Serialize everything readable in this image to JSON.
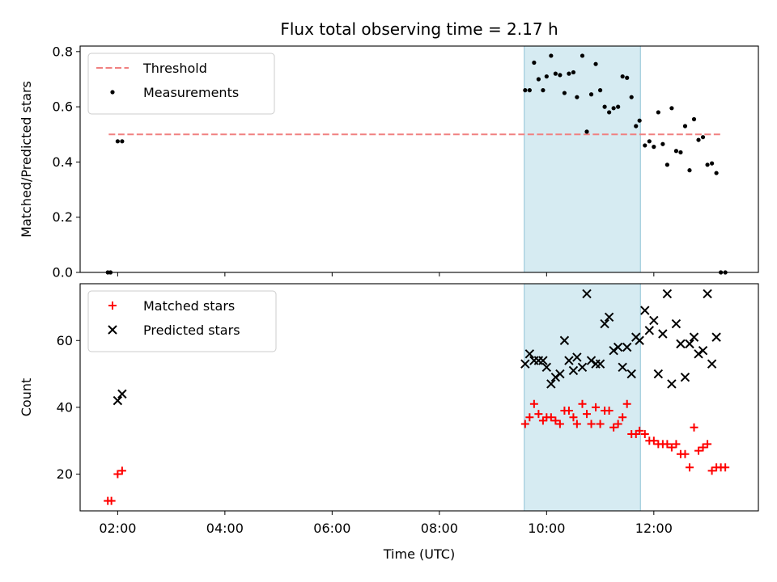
{
  "chart_data": {
    "type": "scatter",
    "title": "Flux total observing time = 2.17 h",
    "xlabel": "Time (UTC)",
    "x_ticks": [
      "02:00",
      "04:00",
      "06:00",
      "08:00",
      "10:00",
      "12:00"
    ],
    "shaded_interval": [
      "09:35",
      "11:45"
    ],
    "shade_color": "#add8e6",
    "panels": [
      {
        "ylabel": "Matched/Predicted stars",
        "ylim": [
          0,
          0.82
        ],
        "yticks": [
          0.0,
          0.2,
          0.4,
          0.6,
          0.8
        ],
        "threshold": {
          "name": "Threshold",
          "value": 0.5,
          "x_range": [
            "01:50",
            "13:15"
          ],
          "color": "#f08080"
        },
        "series": [
          {
            "name": "Measurements",
            "color": "#000000",
            "marker": "dot",
            "points": [
              [
                "01:49",
                0.0
              ],
              [
                "01:52",
                0.0
              ],
              [
                "02:00",
                0.475
              ],
              [
                "02:05",
                0.475
              ],
              [
                "09:36",
                0.66
              ],
              [
                "09:41",
                0.66
              ],
              [
                "09:46",
                0.76
              ],
              [
                "09:51",
                0.7
              ],
              [
                "09:56",
                0.66
              ],
              [
                "10:00",
                0.71
              ],
              [
                "10:05",
                0.785
              ],
              [
                "10:10",
                0.72
              ],
              [
                "10:15",
                0.715
              ],
              [
                "10:20",
                0.65
              ],
              [
                "10:25",
                0.72
              ],
              [
                "10:30",
                0.725
              ],
              [
                "10:34",
                0.635
              ],
              [
                "10:40",
                0.785
              ],
              [
                "10:45",
                0.51
              ],
              [
                "10:50",
                0.645
              ],
              [
                "10:55",
                0.755
              ],
              [
                "11:00",
                0.66
              ],
              [
                "11:05",
                0.6
              ],
              [
                "11:10",
                0.58
              ],
              [
                "11:15",
                0.595
              ],
              [
                "11:20",
                0.6
              ],
              [
                "11:25",
                0.71
              ],
              [
                "11:30",
                0.705
              ],
              [
                "11:35",
                0.635
              ],
              [
                "11:40",
                0.53
              ],
              [
                "11:44",
                0.55
              ],
              [
                "11:50",
                0.46
              ],
              [
                "11:55",
                0.475
              ],
              [
                "12:00",
                0.455
              ],
              [
                "12:05",
                0.58
              ],
              [
                "12:10",
                0.465
              ],
              [
                "12:15",
                0.39
              ],
              [
                "12:20",
                0.595
              ],
              [
                "12:25",
                0.44
              ],
              [
                "12:30",
                0.435
              ],
              [
                "12:35",
                0.53
              ],
              [
                "12:40",
                0.37
              ],
              [
                "12:45",
                0.555
              ],
              [
                "12:50",
                0.48
              ],
              [
                "12:55",
                0.49
              ],
              [
                "13:00",
                0.39
              ],
              [
                "13:05",
                0.395
              ],
              [
                "13:10",
                0.36
              ],
              [
                "13:15",
                0.0
              ],
              [
                "13:20",
                0.0
              ]
            ]
          }
        ]
      },
      {
        "ylabel": "Count",
        "ylim": [
          9,
          77
        ],
        "yticks": [
          20,
          40,
          60
        ],
        "series": [
          {
            "name": "Matched stars",
            "color": "#ff0000",
            "marker": "plus",
            "points": [
              [
                "01:49",
                12
              ],
              [
                "01:53",
                12
              ],
              [
                "02:00",
                20
              ],
              [
                "02:05",
                21
              ],
              [
                "09:36",
                35
              ],
              [
                "09:41",
                37
              ],
              [
                "09:46",
                41
              ],
              [
                "09:51",
                38
              ],
              [
                "09:56",
                36
              ],
              [
                "10:00",
                37
              ],
              [
                "10:05",
                37
              ],
              [
                "10:10",
                36
              ],
              [
                "10:15",
                35
              ],
              [
                "10:20",
                39
              ],
              [
                "10:25",
                39
              ],
              [
                "10:30",
                37
              ],
              [
                "10:34",
                35
              ],
              [
                "10:40",
                41
              ],
              [
                "10:45",
                38
              ],
              [
                "10:50",
                35
              ],
              [
                "10:55",
                40
              ],
              [
                "11:00",
                35
              ],
              [
                "11:05",
                39
              ],
              [
                "11:10",
                39
              ],
              [
                "11:15",
                34
              ],
              [
                "11:20",
                35
              ],
              [
                "11:25",
                37
              ],
              [
                "11:30",
                41
              ],
              [
                "11:35",
                32
              ],
              [
                "11:40",
                32
              ],
              [
                "11:44",
                33
              ],
              [
                "11:50",
                32
              ],
              [
                "11:55",
                30
              ],
              [
                "12:00",
                30
              ],
              [
                "12:05",
                29
              ],
              [
                "12:10",
                29
              ],
              [
                "12:15",
                29
              ],
              [
                "12:20",
                28
              ],
              [
                "12:25",
                29
              ],
              [
                "12:30",
                26
              ],
              [
                "12:35",
                26
              ],
              [
                "12:40",
                22
              ],
              [
                "12:45",
                34
              ],
              [
                "12:50",
                27
              ],
              [
                "12:55",
                28
              ],
              [
                "13:00",
                29
              ],
              [
                "13:05",
                21
              ],
              [
                "13:10",
                22
              ],
              [
                "13:15",
                22
              ],
              [
                "13:20",
                22
              ]
            ]
          },
          {
            "name": "Predicted stars",
            "color": "#000000",
            "marker": "x",
            "points": [
              [
                "02:00",
                42
              ],
              [
                "02:05",
                44
              ],
              [
                "09:36",
                53
              ],
              [
                "09:41",
                56
              ],
              [
                "09:46",
                54
              ],
              [
                "09:51",
                54
              ],
              [
                "09:56",
                54
              ],
              [
                "10:00",
                52
              ],
              [
                "10:05",
                47
              ],
              [
                "10:10",
                49
              ],
              [
                "10:15",
                50
              ],
              [
                "10:20",
                60
              ],
              [
                "10:25",
                54
              ],
              [
                "10:30",
                51
              ],
              [
                "10:34",
                55
              ],
              [
                "10:40",
                52
              ],
              [
                "10:45",
                74
              ],
              [
                "10:50",
                54
              ],
              [
                "10:55",
                53
              ],
              [
                "11:00",
                53
              ],
              [
                "11:05",
                65
              ],
              [
                "11:10",
                67
              ],
              [
                "11:15",
                57
              ],
              [
                "11:20",
                58
              ],
              [
                "11:25",
                52
              ],
              [
                "11:30",
                58
              ],
              [
                "11:35",
                50
              ],
              [
                "11:40",
                61
              ],
              [
                "11:44",
                60
              ],
              [
                "11:50",
                69
              ],
              [
                "11:55",
                63
              ],
              [
                "12:00",
                66
              ],
              [
                "12:05",
                50
              ],
              [
                "12:10",
                62
              ],
              [
                "12:15",
                74
              ],
              [
                "12:20",
                47
              ],
              [
                "12:25",
                65
              ],
              [
                "12:30",
                59
              ],
              [
                "12:35",
                49
              ],
              [
                "12:40",
                59
              ],
              [
                "12:45",
                61
              ],
              [
                "12:50",
                56
              ],
              [
                "12:55",
                57
              ],
              [
                "13:00",
                74
              ],
              [
                "13:05",
                53
              ],
              [
                "13:10",
                61
              ]
            ]
          }
        ]
      }
    ]
  }
}
